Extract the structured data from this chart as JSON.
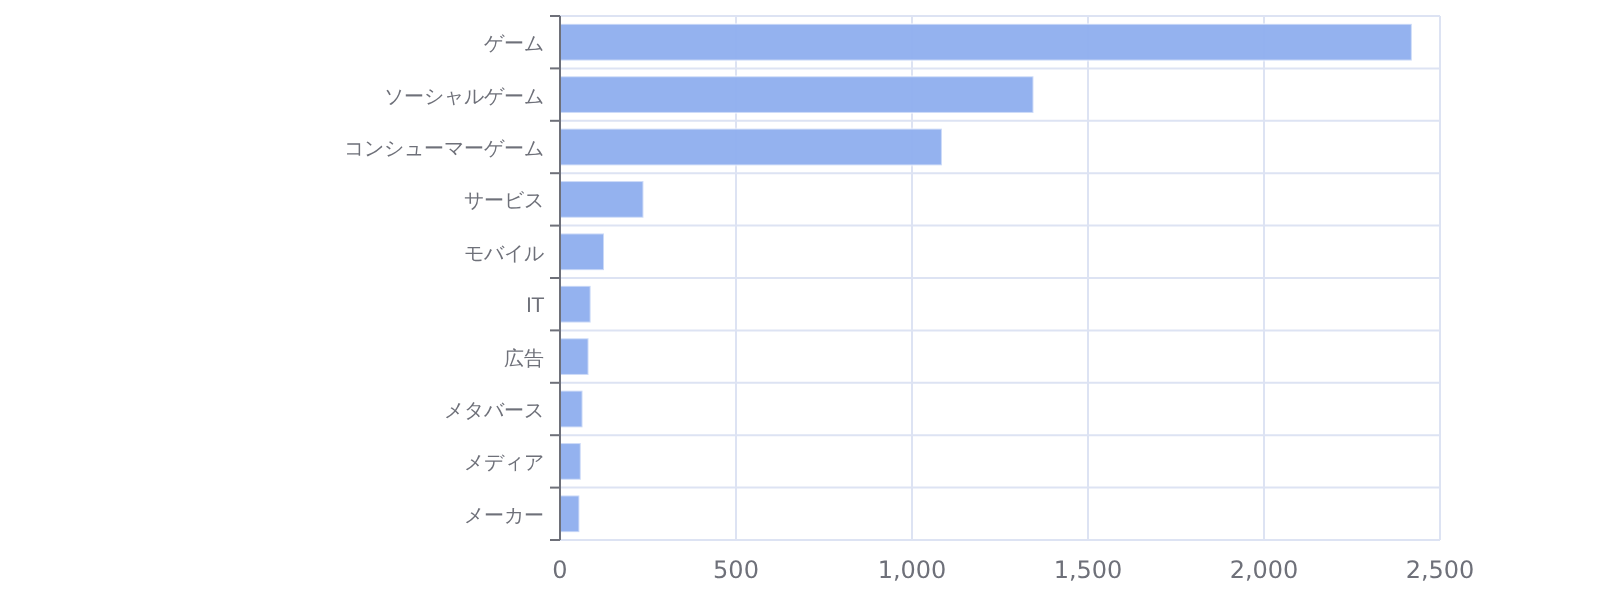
{
  "chart_data": {
    "type": "bar",
    "orientation": "horizontal",
    "categories": [
      "ゲーム",
      "ソーシャルゲーム",
      "コンシューマーゲーム",
      "サービス",
      "モバイル",
      "IT",
      "広告",
      "メタバース",
      "メディア",
      "メーカー"
    ],
    "values": [
      2420,
      1345,
      1085,
      237,
      125,
      87,
      81,
      64,
      59,
      55
    ],
    "color": "#8eaeee",
    "xlim": [
      0,
      2500
    ],
    "xticks": [
      0,
      {
        "value": 500,
        "label": "500"
      },
      {
        "value": 1000,
        "label": "1,000"
      },
      {
        "value": 1500,
        "label": "1,500"
      },
      {
        "value": 2000,
        "label": "2,000"
      },
      {
        "value": 2500,
        "label": "2,500"
      }
    ],
    "grid": true
  }
}
